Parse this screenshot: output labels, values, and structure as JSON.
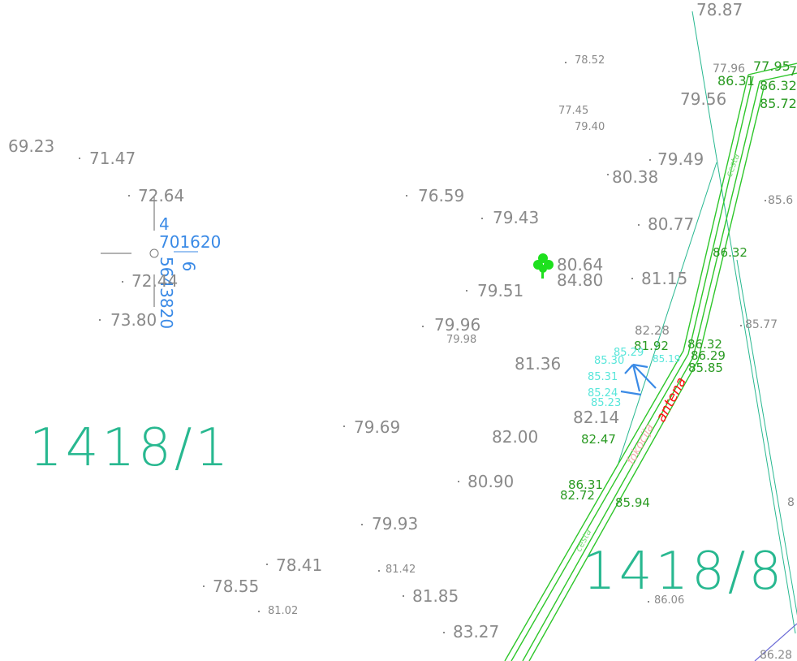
{
  "colors": {
    "elevation": "#8a8a8a",
    "road_elevation": "#2a9a22",
    "parcel": "#28b890",
    "road_line": "#2ec62a",
    "control_point": "#3a8ae6",
    "tree": "#1ee01e",
    "antenna_label": "#ff1010",
    "cyan_points": "#58e6da",
    "boundary_purple": "#6b6bd6"
  },
  "parcels": {
    "left": "1418/1",
    "right": "1418/8"
  },
  "control_point": {
    "line1": "4",
    "line2": "701620",
    "vertical": "5643820",
    "vertical_extra": "6"
  },
  "map_labels": {
    "antenna": "antena",
    "pink_text": "fokocija",
    "road_text_1": "cesta",
    "road_text_2": "cesta"
  },
  "elevations": [
    {
      "v": "69.23"
    },
    {
      "v": "71.47"
    },
    {
      "v": "72.64"
    },
    {
      "v": "72.44"
    },
    {
      "v": "73.80"
    },
    {
      "v": "76.59"
    },
    {
      "v": "79.43"
    },
    {
      "v": "79.51"
    },
    {
      "v": "79.96"
    },
    {
      "v": "79.98"
    },
    {
      "v": "79.69"
    },
    {
      "v": "81.36"
    },
    {
      "v": "82.00"
    },
    {
      "v": "80.90"
    },
    {
      "v": "79.93"
    },
    {
      "v": "78.41"
    },
    {
      "v": "78.55"
    },
    {
      "v": "81.02"
    },
    {
      "v": "81.42"
    },
    {
      "v": "81.85"
    },
    {
      "v": "83.27"
    },
    {
      "v": "78.52"
    },
    {
      "v": "77.45"
    },
    {
      "v": "79.40"
    },
    {
      "v": "79.56"
    },
    {
      "v": "79.49"
    },
    {
      "v": "80.38"
    },
    {
      "v": "80.77"
    },
    {
      "v": "80.64"
    },
    {
      "v": "84.80"
    },
    {
      "v": "81.15"
    },
    {
      "v": "82.28"
    },
    {
      "v": "82.14"
    },
    {
      "v": "86.06"
    },
    {
      "v": "78.87"
    },
    {
      "v": "77.96"
    },
    {
      "v": "85.6"
    },
    {
      "v": "85.77"
    },
    {
      "v": "86.28"
    },
    {
      "v": "8"
    }
  ],
  "road_elevations": [
    {
      "v": "77.95"
    },
    {
      "v": "86.31"
    },
    {
      "v": "86.32"
    },
    {
      "v": "85.72"
    },
    {
      "v": "86.32"
    },
    {
      "v": "81.92"
    },
    {
      "v": "86.32"
    },
    {
      "v": "86.29"
    },
    {
      "v": "85.85"
    },
    {
      "v": "82.47"
    },
    {
      "v": "86.31"
    },
    {
      "v": "82.72"
    },
    {
      "v": "85.94"
    },
    {
      "v": "7"
    }
  ],
  "cyan_points": [
    {
      "v": "85.30"
    },
    {
      "v": "85.29"
    },
    {
      "v": "85.31"
    },
    {
      "v": "85.24"
    },
    {
      "v": "85.23"
    },
    {
      "v": "85.19"
    }
  ]
}
